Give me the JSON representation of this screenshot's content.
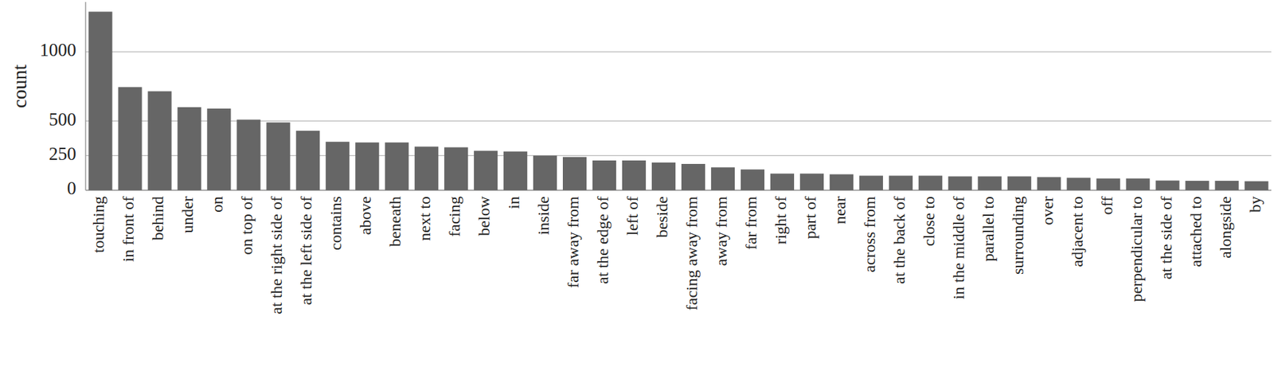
{
  "chart_data": {
    "type": "bar",
    "y_label": "count",
    "categories": [
      "touching",
      "in front of",
      "behind",
      "under",
      "on",
      "on top of",
      "at the right side of",
      "at the left side of",
      "contains",
      "above",
      "beneath",
      "next to",
      "facing",
      "below",
      "in",
      "inside",
      "far away from",
      "at the edge of",
      "left of",
      "beside",
      "facing away from",
      "away from",
      "far from",
      "right of",
      "part of",
      "near",
      "across from",
      "at the back of",
      "close to",
      "in the middle of",
      "parallel to",
      "surrounding",
      "over",
      "adjacent to",
      "off",
      "perpendicular to",
      "at the side of",
      "attached to",
      "alongside",
      "by"
    ],
    "values": [
      1290,
      745,
      715,
      600,
      590,
      510,
      490,
      430,
      350,
      345,
      345,
      315,
      310,
      285,
      280,
      250,
      240,
      215,
      215,
      200,
      190,
      165,
      150,
      120,
      120,
      115,
      105,
      105,
      105,
      100,
      100,
      100,
      95,
      90,
      85,
      85,
      70,
      68,
      68,
      65
    ],
    "color": "#666666",
    "ylim": [
      0,
      1360
    ],
    "yticks": [
      0,
      250,
      500,
      1000
    ],
    "grid": true
  }
}
